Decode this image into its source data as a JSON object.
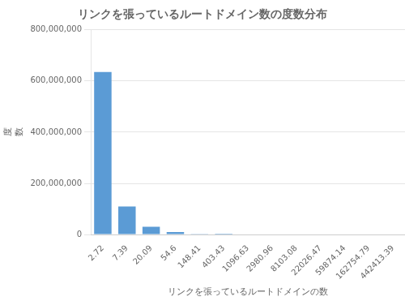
{
  "chart_data": {
    "type": "bar",
    "title": "リンクを張っているルートドメイン数の度数分布",
    "xlabel": "リンクを張っているルートドメインの数",
    "ylabel": "度\n数",
    "categories": [
      "2.72",
      "7.39",
      "20.09",
      "54.6",
      "148.41",
      "403.43",
      "1096.63",
      "2980.96",
      "8103.08",
      "22026.47",
      "59874.14",
      "162754.79",
      "442413.39"
    ],
    "values": [
      635000000,
      110000000,
      30000000,
      10000000,
      3000000,
      500000,
      0,
      0,
      0,
      0,
      0,
      0,
      0
    ],
    "color": "#5B9BD5",
    "ylim": [
      0,
      800000000
    ],
    "yticks": [
      0,
      {
        "value": 200000000,
        "label": "200,000,000"
      },
      {
        "value": 400000000,
        "label": "400,000,000"
      },
      {
        "value": 600000000,
        "label": "600,000,000"
      },
      {
        "value": 800000000,
        "label": "800,000,000"
      }
    ],
    "grid": true
  }
}
